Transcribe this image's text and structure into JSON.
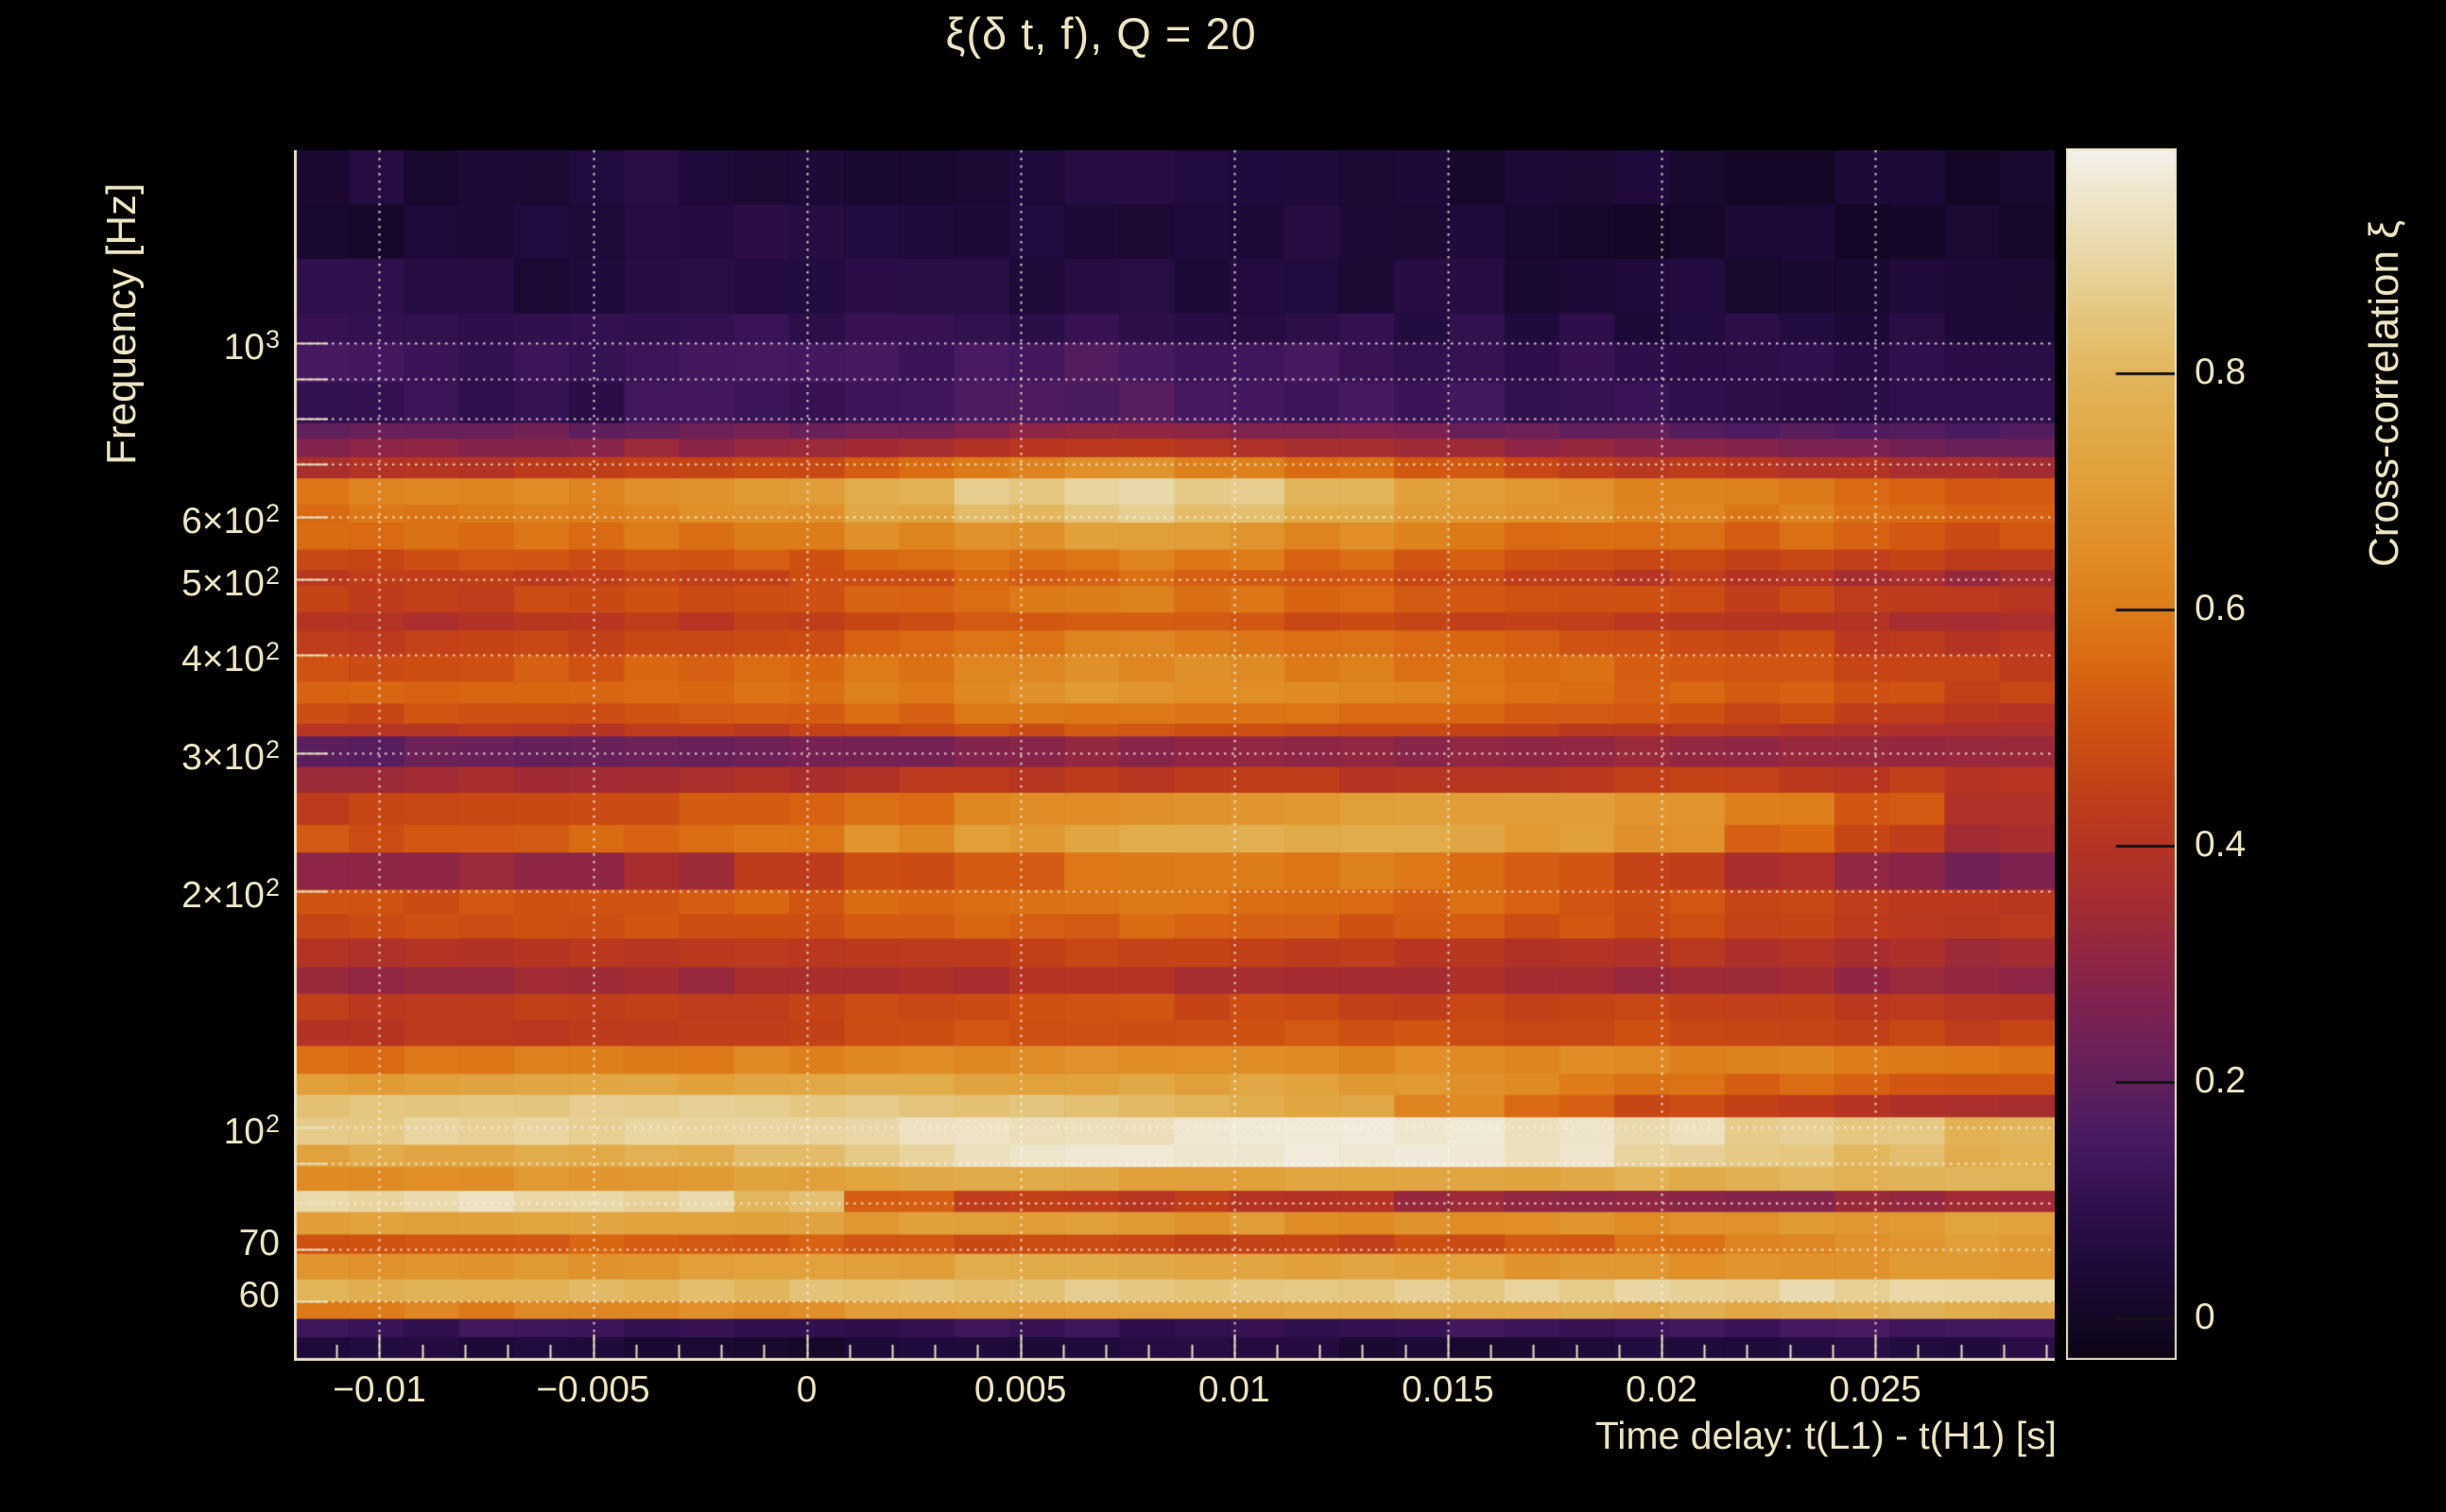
{
  "chart_data": {
    "type": "heatmap",
    "title": "ξ(δ t, f), Q = 20",
    "xlabel": "Time delay: t(L1) - t(H1) [s]",
    "ylabel": "Frequency [Hz]",
    "colorbar_label": "Cross-correlation ξ",
    "xlim": [
      -0.012,
      0.0292
    ],
    "ylim": [
      50.4,
      1760
    ],
    "log_y": true,
    "grid": true,
    "x_ticks": [
      {
        "t": -0.01,
        "label": "−0.01"
      },
      {
        "t": -0.005,
        "label": "−0.005"
      },
      {
        "t": 0,
        "label": "0"
      },
      {
        "t": 0.005,
        "label": "0.005"
      },
      {
        "t": 0.01,
        "label": "0.01"
      },
      {
        "t": 0.015,
        "label": "0.015"
      },
      {
        "t": 0.02,
        "label": "0.02"
      },
      {
        "t": 0.025,
        "label": "0.025"
      }
    ],
    "y_ticks": [
      {
        "f": 1000,
        "mant": "10",
        "exp": "3"
      },
      {
        "f": 600,
        "mant": "6×10",
        "exp": "2"
      },
      {
        "f": 500,
        "mant": "5×10",
        "exp": "2"
      },
      {
        "f": 400,
        "mant": "4×10",
        "exp": "2"
      },
      {
        "f": 300,
        "mant": "3×10",
        "exp": "2"
      },
      {
        "f": 200,
        "mant": "2×10",
        "exp": "2"
      },
      {
        "f": 100,
        "mant": "10",
        "exp": "2"
      },
      {
        "f": 70,
        "mant": "70",
        "exp": ""
      },
      {
        "f": 60,
        "mant": "60",
        "exp": ""
      }
    ],
    "y_gridlines": [
      1000,
      900,
      800,
      700,
      600,
      500,
      400,
      300,
      200,
      100,
      90,
      80,
      70,
      60
    ],
    "x_minor_tick_step": 0.001,
    "colorbar_ticks": [
      {
        "v": 0.8,
        "label": "0.8"
      },
      {
        "v": 0.6,
        "label": "0.6"
      },
      {
        "v": 0.4,
        "label": "0.4"
      },
      {
        "v": 0.2,
        "label": "0.2"
      },
      {
        "v": 0,
        "label": "0"
      }
    ],
    "colorbar_range": [
      -0.035,
      0.99
    ],
    "colors": {
      "background": "#000000",
      "text": "#ece3c2",
      "frame": "#e9e0bf",
      "grid": "rgba(255,250,236,0.8)",
      "colorbar_tick": "#141414"
    },
    "colormap_stops": [
      [
        -0.035,
        "#0c0415"
      ],
      [
        0.0,
        "#150826"
      ],
      [
        0.05,
        "#200b3c"
      ],
      [
        0.1,
        "#32114f"
      ],
      [
        0.15,
        "#471a62"
      ],
      [
        0.2,
        "#60205c"
      ],
      [
        0.25,
        "#782254"
      ],
      [
        0.3,
        "#8e2646"
      ],
      [
        0.35,
        "#a42d33"
      ],
      [
        0.4,
        "#b53424"
      ],
      [
        0.45,
        "#c34118"
      ],
      [
        0.5,
        "#d05212"
      ],
      [
        0.55,
        "#d96712"
      ],
      [
        0.6,
        "#dd7c19"
      ],
      [
        0.65,
        "#e08e28"
      ],
      [
        0.7,
        "#e19d37"
      ],
      [
        0.75,
        "#e1aa47"
      ],
      [
        0.8,
        "#e2b65c"
      ],
      [
        0.85,
        "#e5c67e"
      ],
      [
        0.9,
        "#e9d7a6"
      ],
      [
        0.95,
        "#efe5cb"
      ],
      [
        0.99,
        "#f3f1ec"
      ]
    ],
    "time_bins": 16,
    "rows": [
      {
        "f_hi": 1760,
        "f_lo": 1500,
        "values": [
          0.05,
          0.04,
          0.05,
          0.06,
          0.05,
          0.04,
          0.05,
          0.06,
          0.05,
          0.04,
          0.03,
          0.04,
          0.03,
          0.02,
          0.03,
          0.02
        ]
      },
      {
        "f_hi": 1500,
        "f_lo": 1280,
        "values": [
          0.03,
          0.05,
          0.06,
          0.05,
          0.07,
          0.06,
          0.05,
          0.04,
          0.05,
          0.06,
          0.04,
          0.03,
          0.02,
          0.03,
          0.02,
          0.03
        ]
      },
      {
        "f_hi": 1280,
        "f_lo": 1090,
        "values": [
          0.08,
          0.06,
          0.05,
          0.07,
          0.06,
          0.08,
          0.07,
          0.06,
          0.05,
          0.04,
          0.05,
          0.04,
          0.05,
          0.03,
          0.04,
          0.03
        ]
      },
      {
        "f_hi": 1090,
        "f_lo": 1000,
        "values": [
          0.1,
          0.09,
          0.1,
          0.11,
          0.1,
          0.09,
          0.1,
          0.09,
          0.08,
          0.09,
          0.08,
          0.07,
          0.06,
          0.07,
          0.06,
          0.05
        ]
      },
      {
        "f_hi": 1000,
        "f_lo": 890,
        "values": [
          0.13,
          0.12,
          0.13,
          0.12,
          0.14,
          0.13,
          0.15,
          0.16,
          0.14,
          0.13,
          0.12,
          0.1,
          0.09,
          0.08,
          0.09,
          0.08
        ]
      },
      {
        "f_hi": 890,
        "f_lo": 790,
        "values": [
          0.1,
          0.11,
          0.1,
          0.12,
          0.11,
          0.13,
          0.15,
          0.17,
          0.16,
          0.14,
          0.12,
          0.11,
          0.1,
          0.09,
          0.08,
          0.09
        ]
      },
      {
        "f_hi": 790,
        "f_lo": 755,
        "values": [
          0.2,
          0.21,
          0.22,
          0.22,
          0.24,
          0.26,
          0.28,
          0.3,
          0.28,
          0.26,
          0.24,
          0.22,
          0.2,
          0.18,
          0.17,
          0.16
        ]
      },
      {
        "f_hi": 755,
        "f_lo": 715,
        "values": [
          0.28,
          0.29,
          0.3,
          0.31,
          0.33,
          0.36,
          0.4,
          0.42,
          0.4,
          0.37,
          0.34,
          0.31,
          0.29,
          0.27,
          0.25,
          0.24
        ]
      },
      {
        "f_hi": 715,
        "f_lo": 672,
        "values": [
          0.38,
          0.4,
          0.42,
          0.44,
          0.48,
          0.55,
          0.62,
          0.66,
          0.62,
          0.56,
          0.5,
          0.45,
          0.42,
          0.4,
          0.38,
          0.35
        ]
      },
      {
        "f_hi": 672,
        "f_lo": 622,
        "values": [
          0.6,
          0.62,
          0.63,
          0.66,
          0.7,
          0.78,
          0.86,
          0.9,
          0.88,
          0.8,
          0.72,
          0.66,
          0.63,
          0.6,
          0.56,
          0.52
        ]
      },
      {
        "f_hi": 622,
        "f_lo": 590,
        "values": [
          0.58,
          0.6,
          0.62,
          0.64,
          0.68,
          0.74,
          0.82,
          0.86,
          0.84,
          0.77,
          0.7,
          0.65,
          0.62,
          0.6,
          0.57,
          0.54
        ]
      },
      {
        "f_hi": 590,
        "f_lo": 545,
        "values": [
          0.55,
          0.56,
          0.57,
          0.58,
          0.6,
          0.64,
          0.68,
          0.7,
          0.68,
          0.64,
          0.61,
          0.58,
          0.56,
          0.55,
          0.53,
          0.5
        ]
      },
      {
        "f_hi": 545,
        "f_lo": 513,
        "values": [
          0.48,
          0.49,
          0.5,
          0.51,
          0.52,
          0.55,
          0.58,
          0.6,
          0.58,
          0.55,
          0.52,
          0.5,
          0.48,
          0.46,
          0.44,
          0.42
        ]
      },
      {
        "f_hi": 513,
        "f_lo": 490,
        "values": [
          0.42,
          0.43,
          0.44,
          0.45,
          0.47,
          0.5,
          0.54,
          0.56,
          0.54,
          0.5,
          0.47,
          0.44,
          0.42,
          0.4,
          0.37,
          0.34
        ]
      },
      {
        "f_hi": 490,
        "f_lo": 453,
        "values": [
          0.45,
          0.46,
          0.47,
          0.48,
          0.5,
          0.54,
          0.58,
          0.6,
          0.58,
          0.55,
          0.52,
          0.5,
          0.48,
          0.46,
          0.44,
          0.42
        ]
      },
      {
        "f_hi": 453,
        "f_lo": 430,
        "values": [
          0.38,
          0.39,
          0.4,
          0.42,
          0.44,
          0.48,
          0.52,
          0.54,
          0.52,
          0.49,
          0.46,
          0.44,
          0.42,
          0.4,
          0.38,
          0.36
        ]
      },
      {
        "f_hi": 430,
        "f_lo": 400,
        "values": [
          0.44,
          0.45,
          0.46,
          0.48,
          0.5,
          0.54,
          0.58,
          0.62,
          0.6,
          0.57,
          0.54,
          0.52,
          0.5,
          0.47,
          0.44,
          0.4
        ]
      },
      {
        "f_hi": 400,
        "f_lo": 370,
        "values": [
          0.5,
          0.51,
          0.52,
          0.53,
          0.55,
          0.58,
          0.62,
          0.65,
          0.64,
          0.61,
          0.58,
          0.56,
          0.54,
          0.51,
          0.48,
          0.45
        ]
      },
      {
        "f_hi": 370,
        "f_lo": 347,
        "values": [
          0.53,
          0.54,
          0.55,
          0.56,
          0.58,
          0.61,
          0.65,
          0.68,
          0.66,
          0.63,
          0.6,
          0.58,
          0.56,
          0.53,
          0.5,
          0.46
        ]
      },
      {
        "f_hi": 347,
        "f_lo": 327,
        "values": [
          0.48,
          0.49,
          0.5,
          0.51,
          0.52,
          0.55,
          0.58,
          0.6,
          0.59,
          0.57,
          0.55,
          0.53,
          0.51,
          0.48,
          0.45,
          0.42
        ]
      },
      {
        "f_hi": 327,
        "f_lo": 315,
        "values": [
          0.4,
          0.41,
          0.42,
          0.43,
          0.44,
          0.46,
          0.49,
          0.51,
          0.5,
          0.48,
          0.46,
          0.44,
          0.43,
          0.41,
          0.39,
          0.37
        ]
      },
      {
        "f_hi": 315,
        "f_lo": 288,
        "values": [
          0.2,
          0.21,
          0.22,
          0.23,
          0.24,
          0.26,
          0.28,
          0.3,
          0.3,
          0.29,
          0.29,
          0.3,
          0.31,
          0.32,
          0.33,
          0.34
        ]
      },
      {
        "f_hi": 288,
        "f_lo": 267,
        "values": [
          0.34,
          0.35,
          0.36,
          0.37,
          0.39,
          0.41,
          0.42,
          0.42,
          0.42,
          0.42,
          0.42,
          0.43,
          0.44,
          0.44,
          0.43,
          0.42
        ]
      },
      {
        "f_hi": 267,
        "f_lo": 243,
        "values": [
          0.45,
          0.46,
          0.48,
          0.5,
          0.54,
          0.58,
          0.63,
          0.66,
          0.68,
          0.7,
          0.7,
          0.69,
          0.66,
          0.6,
          0.5,
          0.4
        ]
      },
      {
        "f_hi": 243,
        "f_lo": 224,
        "values": [
          0.5,
          0.52,
          0.54,
          0.56,
          0.6,
          0.65,
          0.7,
          0.74,
          0.76,
          0.76,
          0.74,
          0.7,
          0.64,
          0.55,
          0.45,
          0.35
        ]
      },
      {
        "f_hi": 224,
        "f_lo": 201,
        "values": [
          0.3,
          0.31,
          0.32,
          0.35,
          0.42,
          0.48,
          0.54,
          0.58,
          0.6,
          0.6,
          0.57,
          0.52,
          0.45,
          0.38,
          0.3,
          0.26
        ]
      },
      {
        "f_hi": 201,
        "f_lo": 187,
        "values": [
          0.5,
          0.5,
          0.51,
          0.52,
          0.53,
          0.55,
          0.57,
          0.58,
          0.58,
          0.57,
          0.55,
          0.53,
          0.5,
          0.47,
          0.44,
          0.41
        ]
      },
      {
        "f_hi": 187,
        "f_lo": 174,
        "values": [
          0.48,
          0.48,
          0.49,
          0.5,
          0.51,
          0.52,
          0.53,
          0.54,
          0.53,
          0.52,
          0.51,
          0.5,
          0.49,
          0.47,
          0.44,
          0.41
        ]
      },
      {
        "f_hi": 174,
        "f_lo": 160,
        "values": [
          0.4,
          0.4,
          0.41,
          0.41,
          0.42,
          0.43,
          0.44,
          0.45,
          0.44,
          0.43,
          0.42,
          0.41,
          0.4,
          0.38,
          0.36,
          0.34
        ]
      },
      {
        "f_hi": 160,
        "f_lo": 148,
        "values": [
          0.33,
          0.33,
          0.34,
          0.34,
          0.35,
          0.36,
          0.38,
          0.39,
          0.38,
          0.37,
          0.36,
          0.35,
          0.34,
          0.33,
          0.32,
          0.3
        ]
      },
      {
        "f_hi": 148,
        "f_lo": 137,
        "values": [
          0.43,
          0.43,
          0.44,
          0.45,
          0.46,
          0.47,
          0.48,
          0.49,
          0.48,
          0.47,
          0.46,
          0.46,
          0.45,
          0.44,
          0.43,
          0.42
        ]
      },
      {
        "f_hi": 137,
        "f_lo": 127,
        "values": [
          0.4,
          0.41,
          0.42,
          0.43,
          0.45,
          0.47,
          0.49,
          0.5,
          0.5,
          0.5,
          0.49,
          0.49,
          0.48,
          0.47,
          0.46,
          0.45
        ]
      },
      {
        "f_hi": 127,
        "f_lo": 117,
        "values": [
          0.58,
          0.59,
          0.6,
          0.61,
          0.62,
          0.63,
          0.64,
          0.65,
          0.65,
          0.64,
          0.64,
          0.63,
          0.62,
          0.61,
          0.6,
          0.58
        ]
      },
      {
        "f_hi": 117,
        "f_lo": 110,
        "values": [
          0.7,
          0.71,
          0.72,
          0.73,
          0.74,
          0.74,
          0.74,
          0.73,
          0.72,
          0.7,
          0.67,
          0.62,
          0.58,
          0.55,
          0.53,
          0.52
        ]
      },
      {
        "f_hi": 110,
        "f_lo": 103,
        "values": [
          0.84,
          0.85,
          0.86,
          0.86,
          0.86,
          0.85,
          0.84,
          0.82,
          0.78,
          0.72,
          0.64,
          0.55,
          0.48,
          0.43,
          0.4,
          0.38
        ]
      },
      {
        "f_hi": 103,
        "f_lo": 95,
        "values": [
          0.88,
          0.89,
          0.9,
          0.9,
          0.91,
          0.92,
          0.93,
          0.94,
          0.95,
          0.96,
          0.96,
          0.95,
          0.92,
          0.88,
          0.84,
          0.8
        ]
      },
      {
        "f_hi": 95,
        "f_lo": 89,
        "values": [
          0.74,
          0.75,
          0.76,
          0.78,
          0.82,
          0.88,
          0.93,
          0.96,
          0.97,
          0.97,
          0.96,
          0.94,
          0.9,
          0.86,
          0.82,
          0.78
        ]
      },
      {
        "f_hi": 89,
        "f_lo": 83,
        "values": [
          0.66,
          0.67,
          0.68,
          0.7,
          0.72,
          0.74,
          0.74,
          0.73,
          0.72,
          0.72,
          0.73,
          0.74,
          0.76,
          0.78,
          0.8,
          0.8
        ]
      },
      {
        "f_hi": 83,
        "f_lo": 78,
        "values": [
          0.9,
          0.92,
          0.92,
          0.9,
          0.82,
          0.55,
          0.45,
          0.43,
          0.42,
          0.4,
          0.34,
          0.32,
          0.3,
          0.3,
          0.32,
          0.34
        ]
      },
      {
        "f_hi": 78,
        "f_lo": 73,
        "values": [
          0.7,
          0.71,
          0.72,
          0.72,
          0.71,
          0.7,
          0.7,
          0.69,
          0.68,
          0.66,
          0.65,
          0.65,
          0.66,
          0.68,
          0.7,
          0.72
        ]
      },
      {
        "f_hi": 73,
        "f_lo": 69,
        "values": [
          0.52,
          0.52,
          0.53,
          0.53,
          0.52,
          0.5,
          0.48,
          0.47,
          0.46,
          0.46,
          0.48,
          0.52,
          0.58,
          0.64,
          0.68,
          0.7
        ]
      },
      {
        "f_hi": 69,
        "f_lo": 64,
        "values": [
          0.66,
          0.67,
          0.68,
          0.69,
          0.7,
          0.72,
          0.74,
          0.75,
          0.74,
          0.72,
          0.7,
          0.68,
          0.66,
          0.66,
          0.68,
          0.7
        ]
      },
      {
        "f_hi": 64,
        "f_lo": 60,
        "values": [
          0.78,
          0.79,
          0.8,
          0.81,
          0.82,
          0.83,
          0.84,
          0.85,
          0.85,
          0.85,
          0.86,
          0.87,
          0.88,
          0.89,
          0.9,
          0.9
        ]
      },
      {
        "f_hi": 60,
        "f_lo": 57,
        "values": [
          0.6,
          0.61,
          0.62,
          0.64,
          0.66,
          0.68,
          0.7,
          0.71,
          0.72,
          0.72,
          0.73,
          0.74,
          0.75,
          0.76,
          0.77,
          0.77
        ]
      },
      {
        "f_hi": 57,
        "f_lo": 54,
        "values": [
          0.12,
          0.12,
          0.11,
          0.11,
          0.1,
          0.1,
          0.11,
          0.11,
          0.12,
          0.12,
          0.13,
          0.13,
          0.14,
          0.14,
          0.15,
          0.15
        ]
      },
      {
        "f_hi": 54,
        "f_lo": 50.4,
        "values": [
          0.05,
          0.04,
          0.04,
          0.03,
          0.03,
          0.04,
          0.04,
          0.05,
          0.05,
          0.04,
          0.04,
          0.05,
          0.05,
          0.06,
          0.06,
          0.06
        ]
      }
    ]
  }
}
